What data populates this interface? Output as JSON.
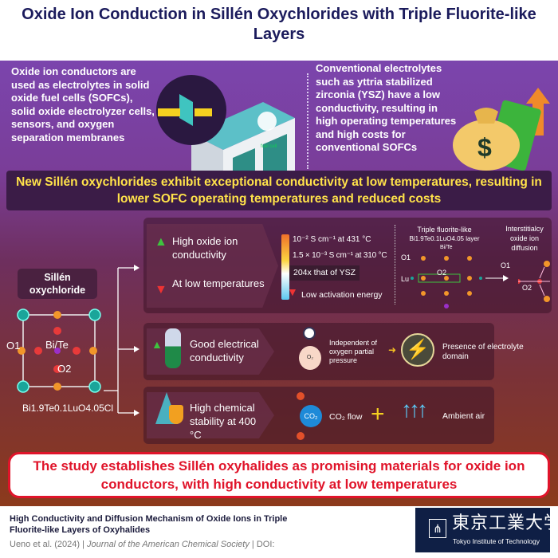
{
  "title": "Oxide Ion Conduction in Sillén Oxychlorides with Triple Fluorite-like Layers",
  "intro": {
    "left": "Oxide ion conductors are used as  electrolytes in solid  oxide fuel cells (SOFCs), solid oxide electrolyzer cells, sensors, and oxygen separation membranes",
    "fuel_cell_label": "fuel cell",
    "right": "Conventional electrolytes such as yttria stabilized zirconia (YSZ) have a low conductivity, resulting in high operating temperatures and high costs for conventional SOFCs",
    "money_symbol": "$"
  },
  "banner": "New Sillén oxychlorides exhibit exceptional conductivity at low temperatures, resulting in lower SOFC operating temperatures and reduced costs",
  "structure": {
    "title": "Sillén oxychloride",
    "o1": "O1",
    "bite": "Bi/Te",
    "o2": "O2",
    "formula": "Bi1.9Te0.1LuO4.05Cl"
  },
  "rows": {
    "r1": {
      "a": "High oxide ion conductivity",
      "b": "At low temperatures",
      "c1": "10⁻² S cm⁻¹ at 431 °C",
      "c2": "1.5 × 10⁻³ S cm⁻¹ at 310 °C",
      "ysz": "204x that of YSZ",
      "ea": "Low activation energy",
      "layer_title": "Triple fluorite-like",
      "layer_formula": "Bi1.9Te0.1LuO4.05 layer",
      "bite": "Bi/Te",
      "o1": "O1",
      "o2": "O2",
      "lu": "Lu",
      "diff_title": "Interstitialcy oxide ion diffusion"
    },
    "r2": {
      "a": "Good electrical conductivity",
      "o2": "O₂",
      "p": "Independent of oxygen partial pressure",
      "d": "Presence of electrolyte domain"
    },
    "r3": {
      "a": "High chemical stability at 400 °C",
      "co2": "CO₂",
      "flow": "CO₂ flow",
      "air": "Ambient air"
    }
  },
  "conclusion": "The study establishes Sillén oxyhalides as promising materials for oxide ion conductors, with high conductivity at low temperatures",
  "footer": {
    "paper": "High Conductivity and Diffusion Mechanism of Oxide Ions in Triple Fluorite-like Layers of Oxyhalides",
    "authors": "Ueno et al. (2024)",
    "journal": "Journal of the American Chemical Society",
    "doi": "DOI:",
    "logo_jp": "東京工業大学",
    "logo_en": "Tokyo Institute of Technology"
  },
  "colors": {
    "title": "#1b1b5c",
    "banner_text": "#ffe24a",
    "conclusion": "#e0142a",
    "up_arrow": "#3ec43e",
    "down_arrow": "#ee3333"
  }
}
